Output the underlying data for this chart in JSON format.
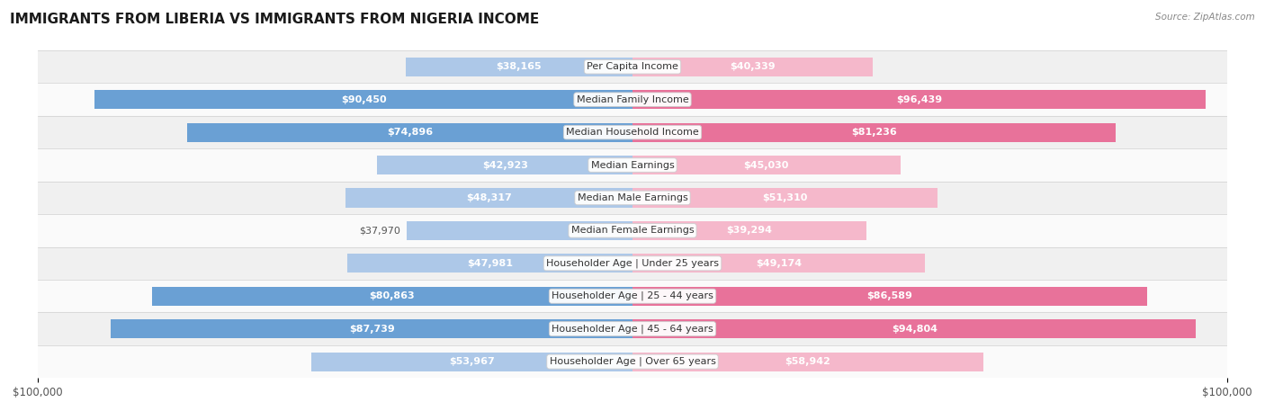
{
  "title": "IMMIGRANTS FROM LIBERIA VS IMMIGRANTS FROM NIGERIA INCOME",
  "source": "Source: ZipAtlas.com",
  "categories": [
    "Per Capita Income",
    "Median Family Income",
    "Median Household Income",
    "Median Earnings",
    "Median Male Earnings",
    "Median Female Earnings",
    "Householder Age | Under 25 years",
    "Householder Age | 25 - 44 years",
    "Householder Age | 45 - 64 years",
    "Householder Age | Over 65 years"
  ],
  "liberia_values": [
    38165,
    90450,
    74896,
    42923,
    48317,
    37970,
    47981,
    80863,
    87739,
    53967
  ],
  "nigeria_values": [
    40339,
    96439,
    81236,
    45030,
    51310,
    39294,
    49174,
    86589,
    94804,
    58942
  ],
  "liberia_labels": [
    "$38,165",
    "$90,450",
    "$74,896",
    "$42,923",
    "$48,317",
    "$37,970",
    "$47,981",
    "$80,863",
    "$87,739",
    "$53,967"
  ],
  "nigeria_labels": [
    "$40,339",
    "$96,439",
    "$81,236",
    "$45,030",
    "$51,310",
    "$39,294",
    "$49,174",
    "$86,589",
    "$94,804",
    "$58,942"
  ],
  "max_value": 100000,
  "liberia_color_light": "#adc8e8",
  "liberia_color_dark": "#6aa0d4",
  "nigeria_color_light": "#f5b8cb",
  "nigeria_color_dark": "#e8729a",
  "row_bg_even": "#f0f0f0",
  "row_bg_odd": "#fafafa",
  "bar_height": 0.58,
  "label_inside_color": "#ffffff",
  "label_outside_color": "#555555",
  "inside_threshold": 0.38,
  "dark_threshold": 0.65,
  "legend_liberia": "Immigrants from Liberia",
  "legend_nigeria": "Immigrants from Nigeria"
}
